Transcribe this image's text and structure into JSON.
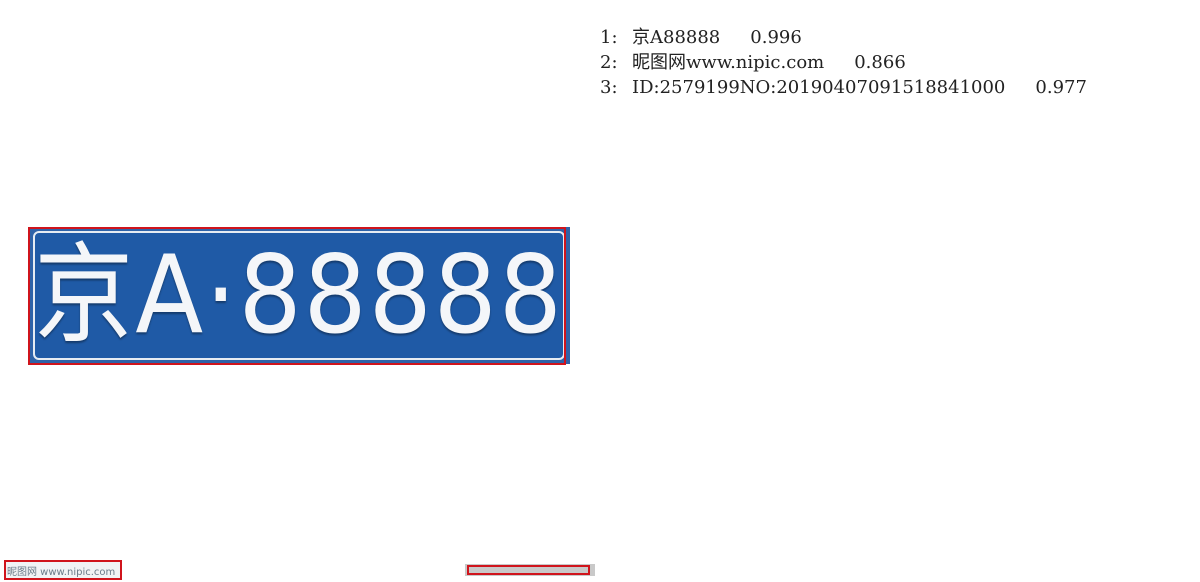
{
  "image": {
    "plate_text": "京A·88888",
    "watermark_text": "昵图网 www.nipic.com"
  },
  "results": [
    {
      "index": "1:",
      "text": "京A88888",
      "score": "0.996"
    },
    {
      "index": "2:",
      "text": "昵图网www.nipic.com",
      "score": "0.866"
    },
    {
      "index": "3:",
      "text": "ID:2579199NO:20190407091518841000",
      "score": "0.977"
    }
  ],
  "colors": {
    "plate_blue": "#1f5aa6",
    "box_red": "#d0141c"
  }
}
